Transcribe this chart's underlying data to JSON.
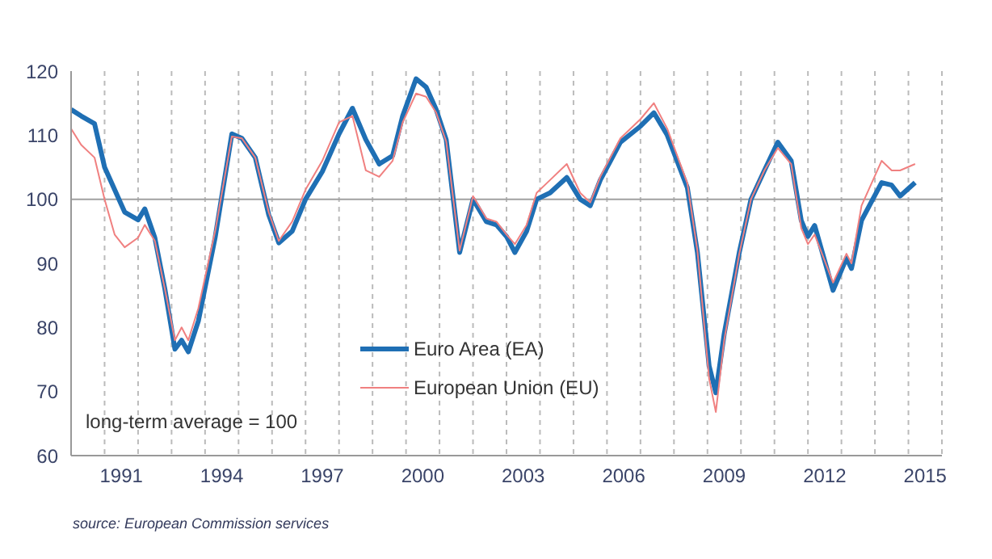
{
  "chart_data": {
    "type": "line",
    "x": [
      1990.0,
      1990.3,
      1990.7,
      1991.0,
      1991.3,
      1991.6,
      1992.0,
      1992.2,
      1992.5,
      1992.8,
      1993.1,
      1993.3,
      1993.5,
      1993.8,
      1994.3,
      1994.8,
      1995.1,
      1995.5,
      1995.9,
      1996.2,
      1996.6,
      1997.0,
      1997.5,
      1998.0,
      1998.4,
      1998.8,
      1999.2,
      1999.6,
      1999.9,
      2000.3,
      2000.6,
      2000.9,
      2001.2,
      2001.6,
      2002.0,
      2002.4,
      2002.7,
      2003.0,
      2003.25,
      2003.6,
      2003.9,
      2004.3,
      2004.8,
      2005.2,
      2005.5,
      2005.8,
      2006.4,
      2007.0,
      2007.4,
      2007.8,
      2008.4,
      2008.7,
      2009.05,
      2009.25,
      2009.5,
      2009.95,
      2010.3,
      2010.7,
      2011.1,
      2011.5,
      2011.8,
      2012.0,
      2012.2,
      2012.75,
      2013.15,
      2013.3,
      2013.6,
      2014.2,
      2014.5,
      2014.75,
      2015.2
    ],
    "series": [
      {
        "name": "Euro Area (EA)",
        "color": "#1f6fb4",
        "values": [
          114,
          113,
          111.8,
          105,
          101.5,
          98,
          96.8,
          98.5,
          94,
          86,
          76.6,
          78,
          76.2,
          81,
          94,
          110.2,
          109.5,
          106.5,
          97.6,
          93.2,
          95,
          100,
          104.3,
          110.2,
          114.2,
          109.3,
          105.5,
          106.8,
          113,
          118.8,
          117.5,
          114,
          109.3,
          91.7,
          100,
          96.5,
          96,
          94.2,
          91.7,
          95,
          100,
          101,
          103.4,
          100,
          99,
          103,
          108.9,
          111.4,
          113.5,
          110,
          101.8,
          91.7,
          74,
          69.8,
          79,
          91.7,
          100,
          104.5,
          108.9,
          106,
          96.7,
          94.2,
          95.9,
          85.8,
          90.8,
          89.2,
          96.7,
          102.6,
          102.2,
          100.5,
          102.6
        ]
      },
      {
        "name": "European Union (EU)",
        "color": "#f08080",
        "values": [
          111,
          108.5,
          106.5,
          100,
          94.5,
          92.5,
          94,
          96,
          93.5,
          86,
          78,
          80,
          78,
          83,
          95,
          109.8,
          109.5,
          106.5,
          98,
          93.5,
          96.5,
          101.5,
          106,
          112,
          113,
          104.5,
          103.5,
          106,
          112,
          116.5,
          116,
          113.5,
          109,
          92,
          100.5,
          97,
          96.5,
          94.5,
          93,
          96,
          101,
          103,
          105.5,
          101,
          99.5,
          103.5,
          109.5,
          112.5,
          115,
          111,
          102.5,
          92,
          72,
          66.8,
          78,
          91.5,
          100,
          104.5,
          108,
          105.5,
          95.5,
          93,
          94.5,
          87,
          91.5,
          90,
          99,
          106,
          104.5,
          104.5,
          105.5
        ]
      }
    ],
    "xlim": [
      1990,
      2016
    ],
    "xticks": [
      {
        "value": 1991,
        "label": null
      },
      {
        "value": 1991.5,
        "label": "1991"
      },
      {
        "value": 1992,
        "label": null
      },
      {
        "value": 1993,
        "label": null
      },
      {
        "value": 1994,
        "label": null
      },
      {
        "value": 1994.5,
        "label": "1994"
      },
      {
        "value": 1995,
        "label": null
      },
      {
        "value": 1996,
        "label": null
      },
      {
        "value": 1997,
        "label": null
      },
      {
        "value": 1997.5,
        "label": "1997"
      },
      {
        "value": 1998,
        "label": null
      },
      {
        "value": 1999,
        "label": null
      },
      {
        "value": 2000,
        "label": null
      },
      {
        "value": 2000.5,
        "label": "2000"
      },
      {
        "value": 2001,
        "label": null
      },
      {
        "value": 2002,
        "label": null
      },
      {
        "value": 2003,
        "label": null
      },
      {
        "value": 2003.5,
        "label": "2003"
      },
      {
        "value": 2004,
        "label": null
      },
      {
        "value": 2005,
        "label": null
      },
      {
        "value": 2006,
        "label": null
      },
      {
        "value": 2006.5,
        "label": "2006"
      },
      {
        "value": 2007,
        "label": null
      },
      {
        "value": 2008,
        "label": null
      },
      {
        "value": 2009,
        "label": null
      },
      {
        "value": 2009.5,
        "label": "2009"
      },
      {
        "value": 2010,
        "label": null
      },
      {
        "value": 2011,
        "label": null
      },
      {
        "value": 2012,
        "label": null
      },
      {
        "value": 2012.5,
        "label": "2012"
      },
      {
        "value": 2013,
        "label": null
      },
      {
        "value": 2014,
        "label": null
      },
      {
        "value": 2015,
        "label": null
      },
      {
        "value": 2015.5,
        "label": "2015"
      },
      {
        "value": 2016,
        "label": null
      }
    ],
    "ylim": [
      60,
      120
    ],
    "yticks": [
      60,
      70,
      80,
      90,
      100,
      110,
      120
    ],
    "ref_lines": [
      {
        "axis": "y",
        "value": 100,
        "color": "#a0a0a0"
      }
    ],
    "grid": "x",
    "legend": "bottom",
    "marker": "none",
    "line_style": "solid",
    "annotations": [
      "long-term average = 100",
      "source: European Commission services"
    ]
  }
}
